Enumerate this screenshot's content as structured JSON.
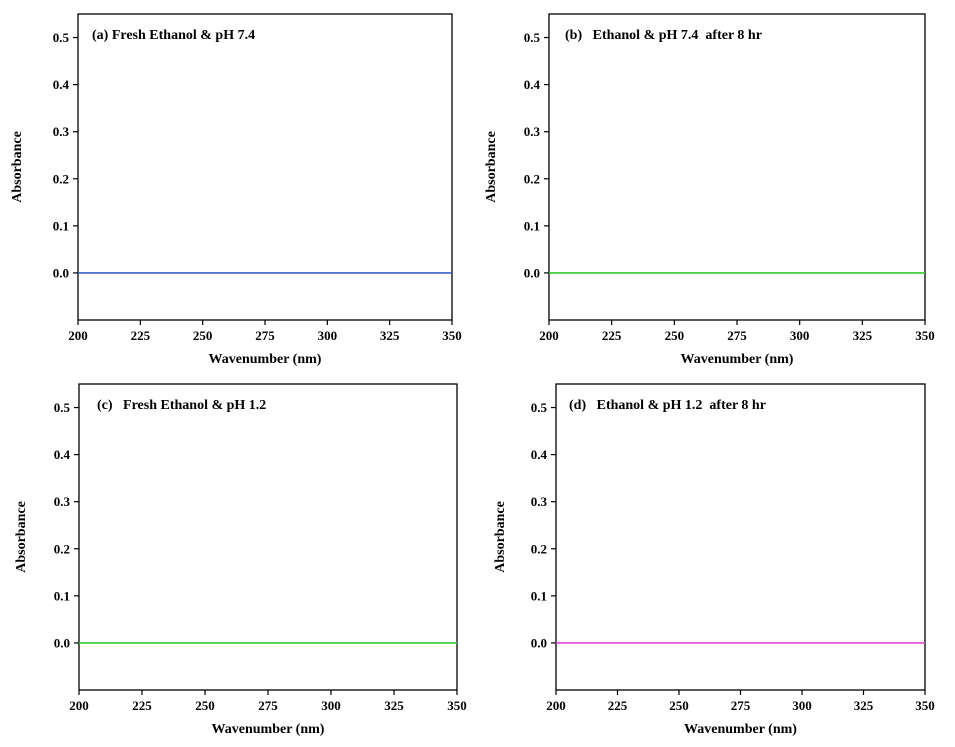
{
  "chart_data": [
    {
      "type": "line",
      "panel": "a",
      "title": "(a) Fresh Ethanol & pH 7.4",
      "xlabel": "Wavenumber (nm)",
      "ylabel": "Absorbance",
      "xlim": [
        200,
        350
      ],
      "ylim": [
        -0.1,
        0.55
      ],
      "xticks": [
        "200",
        "225",
        "250",
        "275",
        "300",
        "325",
        "350"
      ],
      "yticks": [
        "0.0",
        "0.1",
        "0.2",
        "0.3",
        "0.4",
        "0.5"
      ],
      "series": [
        {
          "color": "#3a5fcd",
          "x": [
            200,
            350
          ],
          "y": [
            0.0,
            0.0
          ]
        }
      ]
    },
    {
      "type": "line",
      "panel": "b",
      "title": "(b)   Ethanol & pH 7.4  after 8 hr",
      "xlabel": "Wavenumber (nm)",
      "ylabel": "Absorbance",
      "xlim": [
        200,
        350
      ],
      "ylim": [
        -0.1,
        0.55
      ],
      "xticks": [
        "200",
        "225",
        "250",
        "275",
        "300",
        "325",
        "350"
      ],
      "yticks": [
        "0.0",
        "0.1",
        "0.2",
        "0.3",
        "0.4",
        "0.5"
      ],
      "series": [
        {
          "color": "#33cc33",
          "x": [
            200,
            350
          ],
          "y": [
            0.0,
            0.0
          ]
        }
      ]
    },
    {
      "type": "line",
      "panel": "c",
      "title": "(c)   Fresh Ethanol & pH 1.2",
      "xlabel": "Wavenumber (nm)",
      "ylabel": "Absorbance",
      "xlim": [
        200,
        350
      ],
      "ylim": [
        -0.1,
        0.55
      ],
      "xticks": [
        "200",
        "225",
        "250",
        "275",
        "300",
        "325",
        "350"
      ],
      "yticks": [
        "0.0",
        "0.1",
        "0.2",
        "0.3",
        "0.4",
        "0.5"
      ],
      "series": [
        {
          "color": "#33cc33",
          "x": [
            200,
            350
          ],
          "y": [
            0.0,
            0.0
          ]
        }
      ]
    },
    {
      "type": "line",
      "panel": "d",
      "title": "(d)   Ethanol & pH 1.2  after 8 hr",
      "xlabel": "Wavenumber (nm)",
      "ylabel": "Absorbance",
      "xlim": [
        200,
        350
      ],
      "ylim": [
        -0.1,
        0.55
      ],
      "xticks": [
        "200",
        "225",
        "250",
        "275",
        "300",
        "325",
        "350"
      ],
      "yticks": [
        "0.0",
        "0.1",
        "0.2",
        "0.3",
        "0.4",
        "0.5"
      ],
      "series": [
        {
          "color": "#dd44dd",
          "x": [
            200,
            350
          ],
          "y": [
            0.0,
            0.0
          ]
        }
      ]
    }
  ]
}
